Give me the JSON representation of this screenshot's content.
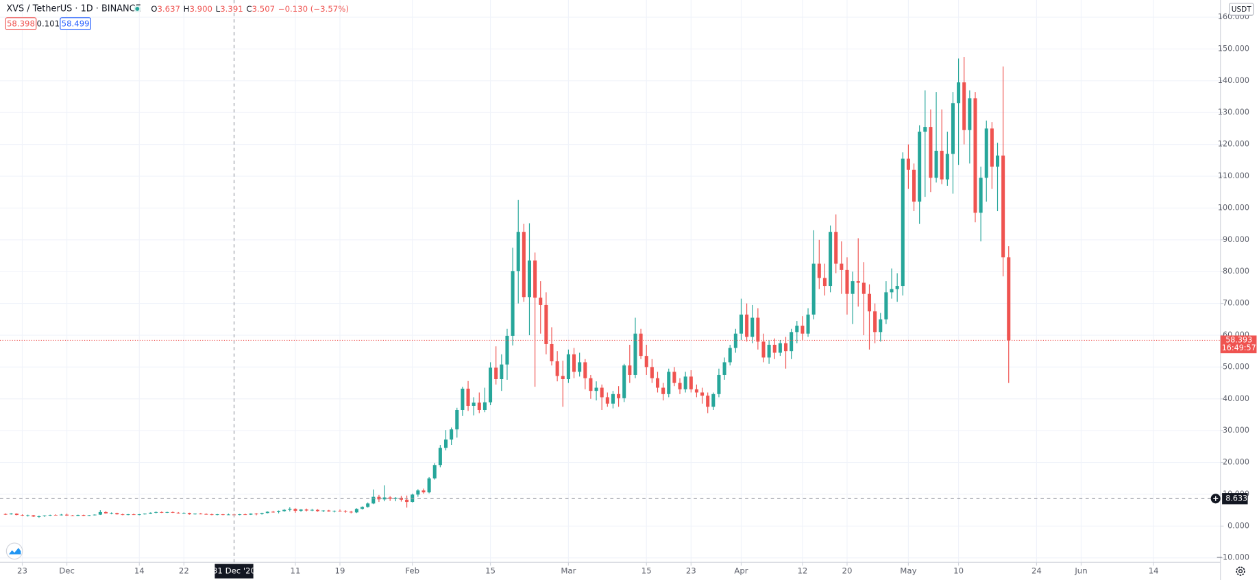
{
  "chart_data": {
    "type": "candlestick",
    "title": "XVS / TetherUS · 1D · BINANCE",
    "header": {
      "ohlc": [
        {
          "label": "O",
          "value": "3.637"
        },
        {
          "label": "H",
          "value": "3.900"
        },
        {
          "label": "L",
          "value": "3.391"
        },
        {
          "label": "C",
          "value": "3.507"
        }
      ],
      "change": "−0.130 (−3.57%)"
    },
    "quote": {
      "bid": "58.398",
      "spread": "0.101",
      "ask": "58.499"
    },
    "unit": "USDT",
    "up_color": "#26a69a",
    "down_color": "#ef5350",
    "grid": true,
    "xlim": [
      "2020-11-19",
      "2021-06-26"
    ],
    "ylim": [
      -11.4,
      165.4
    ],
    "yticks": [
      {
        "value": -10,
        "label": "−10.000"
      },
      {
        "value": 0,
        "label": "0.000"
      },
      {
        "value": 10,
        "label": "10.000"
      },
      {
        "value": 20,
        "label": "20.000"
      },
      {
        "value": 30,
        "label": "30.000"
      },
      {
        "value": 40,
        "label": "40.000"
      },
      {
        "value": 50,
        "label": "50.000"
      },
      {
        "value": 60,
        "label": "60.000"
      },
      {
        "value": 70,
        "label": "70.000"
      },
      {
        "value": 80,
        "label": "80.000"
      },
      {
        "value": 90,
        "label": "90.000"
      },
      {
        "value": 100,
        "label": "100.000"
      },
      {
        "value": 110,
        "label": "110.000"
      },
      {
        "value": 120,
        "label": "120.000"
      },
      {
        "value": 130,
        "label": "130.000"
      },
      {
        "value": 140,
        "label": "140.000"
      },
      {
        "value": 150,
        "label": "150.000"
      },
      {
        "value": 160,
        "label": "160.000"
      }
    ],
    "xticks": [
      {
        "value": "2020-11-23",
        "label": "23"
      },
      {
        "value": "2020-12-01",
        "label": "Dec"
      },
      {
        "value": "2020-12-14",
        "label": "14"
      },
      {
        "value": "2020-12-22",
        "label": "22"
      },
      {
        "value": "2021-01-11",
        "label": "11"
      },
      {
        "value": "2021-01-19",
        "label": "19"
      },
      {
        "value": "2021-02-01",
        "label": "Feb"
      },
      {
        "value": "2021-02-15",
        "label": "15"
      },
      {
        "value": "2021-03-01",
        "label": "Mar"
      },
      {
        "value": "2021-03-15",
        "label": "15"
      },
      {
        "value": "2021-03-23",
        "label": "23"
      },
      {
        "value": "2021-04-01",
        "label": "Apr"
      },
      {
        "value": "2021-04-12",
        "label": "12"
      },
      {
        "value": "2021-04-20",
        "label": "20"
      },
      {
        "value": "2021-05-01",
        "label": "May"
      },
      {
        "value": "2021-05-10",
        "label": "10"
      },
      {
        "value": "2021-05-24",
        "label": "24"
      },
      {
        "value": "2021-06-01",
        "label": "Jun"
      },
      {
        "value": "2021-06-14",
        "label": "14"
      }
    ],
    "crosshair": {
      "x": "2020-12-31",
      "x_label": "31 Dec '20",
      "y": 8.633
    },
    "last_price": 58.393,
    "countdown": "16:49:57",
    "x": [
      "2020-11-20",
      "2020-11-21",
      "2020-11-22",
      "2020-11-23",
      "2020-11-24",
      "2020-11-25",
      "2020-11-26",
      "2020-11-27",
      "2020-11-28",
      "2020-11-29",
      "2020-11-30",
      "2020-12-01",
      "2020-12-02",
      "2020-12-03",
      "2020-12-04",
      "2020-12-05",
      "2020-12-06",
      "2020-12-07",
      "2020-12-08",
      "2020-12-09",
      "2020-12-10",
      "2020-12-11",
      "2020-12-12",
      "2020-12-13",
      "2020-12-14",
      "2020-12-15",
      "2020-12-16",
      "2020-12-17",
      "2020-12-18",
      "2020-12-19",
      "2020-12-20",
      "2020-12-21",
      "2020-12-22",
      "2020-12-23",
      "2020-12-24",
      "2020-12-25",
      "2020-12-26",
      "2020-12-27",
      "2020-12-28",
      "2020-12-29",
      "2020-12-30",
      "2020-12-31",
      "2021-01-01",
      "2021-01-02",
      "2021-01-03",
      "2021-01-04",
      "2021-01-05",
      "2021-01-06",
      "2021-01-07",
      "2021-01-08",
      "2021-01-09",
      "2021-01-10",
      "2021-01-11",
      "2021-01-12",
      "2021-01-13",
      "2021-01-14",
      "2021-01-15",
      "2021-01-16",
      "2021-01-17",
      "2021-01-18",
      "2021-01-19",
      "2021-01-20",
      "2021-01-21",
      "2021-01-22",
      "2021-01-23",
      "2021-01-24",
      "2021-01-25",
      "2021-01-26",
      "2021-01-27",
      "2021-01-28",
      "2021-01-29",
      "2021-01-30",
      "2021-01-31",
      "2021-02-01",
      "2021-02-02",
      "2021-02-03",
      "2021-02-04",
      "2021-02-05",
      "2021-02-06",
      "2021-02-07",
      "2021-02-08",
      "2021-02-09",
      "2021-02-10",
      "2021-02-11",
      "2021-02-12",
      "2021-02-13",
      "2021-02-14",
      "2021-02-15",
      "2021-02-16",
      "2021-02-17",
      "2021-02-18",
      "2021-02-19",
      "2021-02-20",
      "2021-02-21",
      "2021-02-22",
      "2021-02-23",
      "2021-02-24",
      "2021-02-25",
      "2021-02-26",
      "2021-02-27",
      "2021-02-28",
      "2021-03-01",
      "2021-03-02",
      "2021-03-03",
      "2021-03-04",
      "2021-03-05",
      "2021-03-06",
      "2021-03-07",
      "2021-03-08",
      "2021-03-09",
      "2021-03-10",
      "2021-03-11",
      "2021-03-12",
      "2021-03-13",
      "2021-03-14",
      "2021-03-15",
      "2021-03-16",
      "2021-03-17",
      "2021-03-18",
      "2021-03-19",
      "2021-03-20",
      "2021-03-21",
      "2021-03-22",
      "2021-03-23",
      "2021-03-24",
      "2021-03-25",
      "2021-03-26",
      "2021-03-27",
      "2021-03-28",
      "2021-03-29",
      "2021-03-30",
      "2021-03-31",
      "2021-04-01",
      "2021-04-02",
      "2021-04-03",
      "2021-04-04",
      "2021-04-05",
      "2021-04-06",
      "2021-04-07",
      "2021-04-08",
      "2021-04-09",
      "2021-04-10",
      "2021-04-11",
      "2021-04-12",
      "2021-04-13",
      "2021-04-14",
      "2021-04-15",
      "2021-04-16",
      "2021-04-17",
      "2021-04-18",
      "2021-04-19",
      "2021-04-20",
      "2021-04-21",
      "2021-04-22",
      "2021-04-23",
      "2021-04-24",
      "2021-04-25",
      "2021-04-26",
      "2021-04-27",
      "2021-04-28",
      "2021-04-29",
      "2021-04-30",
      "2021-05-01",
      "2021-05-02",
      "2021-05-03",
      "2021-05-04",
      "2021-05-05",
      "2021-05-06",
      "2021-05-07",
      "2021-05-08",
      "2021-05-09",
      "2021-05-10",
      "2021-05-11",
      "2021-05-12",
      "2021-05-13",
      "2021-05-14",
      "2021-05-15",
      "2021-05-16",
      "2021-05-17",
      "2021-05-18",
      "2021-05-19"
    ],
    "ohlc": [
      [
        3.8,
        4.0,
        3.5,
        3.7
      ],
      [
        3.7,
        4.1,
        3.6,
        3.9
      ],
      [
        3.9,
        4.0,
        3.4,
        3.5
      ],
      [
        3.5,
        3.7,
        3.1,
        3.3
      ],
      [
        3.3,
        3.6,
        3.0,
        3.4
      ],
      [
        3.4,
        3.5,
        2.9,
        3.0
      ],
      [
        3.0,
        3.3,
        2.6,
        3.1
      ],
      [
        3.1,
        3.4,
        2.9,
        3.3
      ],
      [
        3.3,
        3.6,
        3.1,
        3.5
      ],
      [
        3.5,
        3.7,
        3.3,
        3.4
      ],
      [
        3.4,
        3.8,
        3.3,
        3.6
      ],
      [
        3.6,
        3.9,
        3.2,
        3.3
      ],
      [
        3.3,
        3.5,
        3.1,
        3.2
      ],
      [
        3.2,
        3.6,
        3.1,
        3.5
      ],
      [
        3.5,
        3.6,
        3.1,
        3.2
      ],
      [
        3.2,
        3.5,
        3.1,
        3.4
      ],
      [
        3.4,
        3.7,
        3.3,
        3.6
      ],
      [
        3.6,
        5.0,
        3.5,
        4.4
      ],
      [
        4.4,
        4.7,
        3.9,
        4.0
      ],
      [
        4.0,
        4.3,
        3.7,
        4.1
      ],
      [
        4.1,
        4.2,
        3.6,
        3.7
      ],
      [
        3.7,
        3.9,
        3.4,
        3.6
      ],
      [
        3.6,
        3.8,
        3.4,
        3.7
      ],
      [
        3.7,
        3.9,
        3.5,
        3.6
      ],
      [
        3.6,
        3.8,
        3.4,
        3.7
      ],
      [
        3.7,
        4.0,
        3.6,
        3.9
      ],
      [
        3.9,
        4.3,
        3.8,
        4.2
      ],
      [
        4.2,
        4.6,
        4.0,
        4.4
      ],
      [
        4.4,
        4.6,
        4.1,
        4.3
      ],
      [
        4.3,
        4.5,
        4.1,
        4.4
      ],
      [
        4.4,
        4.6,
        4.1,
        4.2
      ],
      [
        4.2,
        4.4,
        3.9,
        4.0
      ],
      [
        4.0,
        4.3,
        3.8,
        4.1
      ],
      [
        4.1,
        4.2,
        3.6,
        3.7
      ],
      [
        3.7,
        4.0,
        3.6,
        3.9
      ],
      [
        3.9,
        4.1,
        3.7,
        3.8
      ],
      [
        3.8,
        4.0,
        3.6,
        3.7
      ],
      [
        3.7,
        3.9,
        3.4,
        3.5
      ],
      [
        3.5,
        3.8,
        3.4,
        3.7
      ],
      [
        3.7,
        3.8,
        3.4,
        3.6
      ],
      [
        3.6,
        3.9,
        3.5,
        3.64
      ],
      [
        3.637,
        3.9,
        3.391,
        3.507
      ],
      [
        3.5,
        3.8,
        3.4,
        3.7
      ],
      [
        3.7,
        3.9,
        3.5,
        3.6
      ],
      [
        3.6,
        4.0,
        3.5,
        3.9
      ],
      [
        3.9,
        4.1,
        3.4,
        3.8
      ],
      [
        3.8,
        4.2,
        3.6,
        4.1
      ],
      [
        4.1,
        4.6,
        4.0,
        4.5
      ],
      [
        4.5,
        4.8,
        4.2,
        4.4
      ],
      [
        4.4,
        4.9,
        4.0,
        4.7
      ],
      [
        4.7,
        5.3,
        4.5,
        5.1
      ],
      [
        5.1,
        5.9,
        4.6,
        5.4
      ],
      [
        5.4,
        5.6,
        4.2,
        4.8
      ],
      [
        4.8,
        5.3,
        4.5,
        5.2
      ],
      [
        5.2,
        5.5,
        4.6,
        4.9
      ],
      [
        4.9,
        5.4,
        4.7,
        5.1
      ],
      [
        5.1,
        5.3,
        4.5,
        4.7
      ],
      [
        4.7,
        5.0,
        4.4,
        4.9
      ],
      [
        4.9,
        5.1,
        4.5,
        4.6
      ],
      [
        4.6,
        4.9,
        4.3,
        4.8
      ],
      [
        4.8,
        5.2,
        4.5,
        4.7
      ],
      [
        4.7,
        5.0,
        4.2,
        4.5
      ],
      [
        4.5,
        4.8,
        4.0,
        4.3
      ],
      [
        4.3,
        5.6,
        4.1,
        5.4
      ],
      [
        5.4,
        6.2,
        5.2,
        6.0
      ],
      [
        6.0,
        7.4,
        5.8,
        7.1
      ],
      [
        7.1,
        11.5,
        6.9,
        9.2
      ],
      [
        9.2,
        9.8,
        7.6,
        8.4
      ],
      [
        8.4,
        12.8,
        7.8,
        9.0
      ],
      [
        9.0,
        9.4,
        7.9,
        8.6
      ],
      [
        8.6,
        9.1,
        7.8,
        8.9
      ],
      [
        8.9,
        9.5,
        7.7,
        8.3
      ],
      [
        8.3,
        9.6,
        5.8,
        7.6
      ],
      [
        7.6,
        10.2,
        7.4,
        9.9
      ],
      [
        9.9,
        11.6,
        9.2,
        11.2
      ],
      [
        11.2,
        11.8,
        10.2,
        10.6
      ],
      [
        10.6,
        15.4,
        10.3,
        15.0
      ],
      [
        15.0,
        19.8,
        14.6,
        19.2
      ],
      [
        19.2,
        25.5,
        18.5,
        24.6
      ],
      [
        24.6,
        30.2,
        23.8,
        27.2
      ],
      [
        27.2,
        31.0,
        25.5,
        30.4
      ],
      [
        30.4,
        37.2,
        27.8,
        36.5
      ],
      [
        36.5,
        43.8,
        34.6,
        43.2
      ],
      [
        43.2,
        45.6,
        36.2,
        37.8
      ],
      [
        37.8,
        40.5,
        34.8,
        38.8
      ],
      [
        38.8,
        42.0,
        35.5,
        36.5
      ],
      [
        36.5,
        43.5,
        35.8,
        38.9
      ],
      [
        38.9,
        51.5,
        38.0,
        49.8
      ],
      [
        49.8,
        56.5,
        44.5,
        46.2
      ],
      [
        46.2,
        54.0,
        42.5,
        50.8
      ],
      [
        50.8,
        62.0,
        46.0,
        59.8
      ],
      [
        59.8,
        87.5,
        56.8,
        80.2
      ],
      [
        80.2,
        102.5,
        70.0,
        92.5
      ],
      [
        92.5,
        95.0,
        70.5,
        72.0
      ],
      [
        72.0,
        95.2,
        60.0,
        83.5
      ],
      [
        83.5,
        86.0,
        43.8,
        71.8
      ],
      [
        71.8,
        77.0,
        60.5,
        69.5
      ],
      [
        69.5,
        73.5,
        54.0,
        57.2
      ],
      [
        57.2,
        62.5,
        50.5,
        51.8
      ],
      [
        51.8,
        55.0,
        45.5,
        47.2
      ],
      [
        47.2,
        52.0,
        37.5,
        46.2
      ],
      [
        46.2,
        55.5,
        45.0,
        54.0
      ],
      [
        54.0,
        56.0,
        46.5,
        48.5
      ],
      [
        48.5,
        54.5,
        47.0,
        51.5
      ],
      [
        51.5,
        52.5,
        43.0,
        46.5
      ],
      [
        46.5,
        47.5,
        40.0,
        42.5
      ],
      [
        42.5,
        45.5,
        39.5,
        43.5
      ],
      [
        43.5,
        44.5,
        36.5,
        40.5
      ],
      [
        40.5,
        42.0,
        37.5,
        38.5
      ],
      [
        38.5,
        42.5,
        37.0,
        41.5
      ],
      [
        41.5,
        44.0,
        37.5,
        40.2
      ],
      [
        40.2,
        51.0,
        39.0,
        50.5
      ],
      [
        50.5,
        57.0,
        45.0,
        47.5
      ],
      [
        47.5,
        65.5,
        46.5,
        60.5
      ],
      [
        60.5,
        62.0,
        52.5,
        53.5
      ],
      [
        53.5,
        57.0,
        47.5,
        50.0
      ],
      [
        50.0,
        52.5,
        45.0,
        46.5
      ],
      [
        46.5,
        48.5,
        42.0,
        43.5
      ],
      [
        43.5,
        45.0,
        39.5,
        41.5
      ],
      [
        41.5,
        49.5,
        40.5,
        48.5
      ],
      [
        48.5,
        50.0,
        44.0,
        45.0
      ],
      [
        45.0,
        46.5,
        41.5,
        43.0
      ],
      [
        43.0,
        48.5,
        42.0,
        47.0
      ],
      [
        47.0,
        49.0,
        42.0,
        43.0
      ],
      [
        43.0,
        44.5,
        40.5,
        42.0
      ],
      [
        42.0,
        43.5,
        38.5,
        41.0
      ],
      [
        41.0,
        42.0,
        35.5,
        37.5
      ],
      [
        37.5,
        42.0,
        36.5,
        41.5
      ],
      [
        41.5,
        49.5,
        40.5,
        47.5
      ],
      [
        47.5,
        53.0,
        46.0,
        51.5
      ],
      [
        51.5,
        57.0,
        50.5,
        56.0
      ],
      [
        56.0,
        62.0,
        54.5,
        60.5
      ],
      [
        60.5,
        71.5,
        58.5,
        66.5
      ],
      [
        66.5,
        70.0,
        58.0,
        59.5
      ],
      [
        59.5,
        69.5,
        57.5,
        65.5
      ],
      [
        65.5,
        68.5,
        55.5,
        58.0
      ],
      [
        58.0,
        60.5,
        51.5,
        53.0
      ],
      [
        53.0,
        58.5,
        51.0,
        57.0
      ],
      [
        57.0,
        59.0,
        52.5,
        54.5
      ],
      [
        54.5,
        58.5,
        53.5,
        57.5
      ],
      [
        57.5,
        59.5,
        49.5,
        55.0
      ],
      [
        55.0,
        62.0,
        52.5,
        61.0
      ],
      [
        61.0,
        64.5,
        57.5,
        63.0
      ],
      [
        63.0,
        66.0,
        58.5,
        60.5
      ],
      [
        60.5,
        68.5,
        59.5,
        66.5
      ],
      [
        66.5,
        93.0,
        65.0,
        82.5
      ],
      [
        82.5,
        90.0,
        74.5,
        78.0
      ],
      [
        78.0,
        82.5,
        72.5,
        75.5
      ],
      [
        75.5,
        94.5,
        73.5,
        92.5
      ],
      [
        92.5,
        98.0,
        79.5,
        82.5
      ],
      [
        82.5,
        89.5,
        73.0,
        80.5
      ],
      [
        80.5,
        84.5,
        66.5,
        73.0
      ],
      [
        73.0,
        80.0,
        63.5,
        77.0
      ],
      [
        77.0,
        90.5,
        69.0,
        76.5
      ],
      [
        76.5,
        83.0,
        60.0,
        73.0
      ],
      [
        73.0,
        76.0,
        55.5,
        67.5
      ],
      [
        67.5,
        70.0,
        57.5,
        61.0
      ],
      [
        61.0,
        67.0,
        58.0,
        65.0
      ],
      [
        65.0,
        77.0,
        63.5,
        73.5
      ],
      [
        73.5,
        81.0,
        71.5,
        74.5
      ],
      [
        74.5,
        79.5,
        70.5,
        75.5
      ],
      [
        75.5,
        117.5,
        72.5,
        115.5
      ],
      [
        115.5,
        120.0,
        106.0,
        112.0
      ],
      [
        112.0,
        114.0,
        99.0,
        102.0
      ],
      [
        102.0,
        126.0,
        95.0,
        124.0
      ],
      [
        124.0,
        137.0,
        103.5,
        125.5
      ],
      [
        125.5,
        131.0,
        105.0,
        109.5
      ],
      [
        109.5,
        136.5,
        108.0,
        118.0
      ],
      [
        118.0,
        131.0,
        107.5,
        109.0
      ],
      [
        109.0,
        124.0,
        107.0,
        117.0
      ],
      [
        117.0,
        136.5,
        104.5,
        133.0
      ],
      [
        133.0,
        147.0,
        113.5,
        139.5
      ],
      [
        139.5,
        147.5,
        120.0,
        124.5
      ],
      [
        124.5,
        137.0,
        114.0,
        134.5
      ],
      [
        134.5,
        136.5,
        95.5,
        98.5
      ],
      [
        98.5,
        113.0,
        89.5,
        109.5
      ],
      [
        109.5,
        127.5,
        102.0,
        125.0
      ],
      [
        125.0,
        127.0,
        106.0,
        113.0
      ],
      [
        113.0,
        120.5,
        99.0,
        116.5
      ],
      [
        116.5,
        144.5,
        78.5,
        84.5
      ],
      [
        84.5,
        88.0,
        45.0,
        58.393
      ]
    ]
  }
}
